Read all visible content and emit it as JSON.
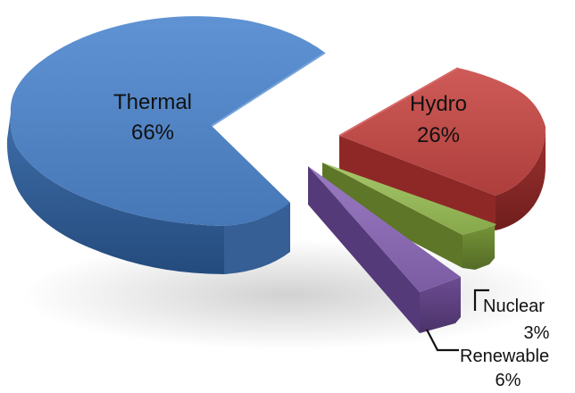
{
  "chart_data": {
    "type": "pie",
    "categories": [
      "Thermal",
      "Hydro",
      "Nuclear",
      "Renewable"
    ],
    "values": [
      66,
      26,
      3,
      6
    ],
    "labels": [
      "66%",
      "26%",
      "3%",
      "6%"
    ],
    "exploded": true,
    "style": "3d",
    "colors": {
      "Thermal": "#4f81bd",
      "Hydro": "#c0504d",
      "Nuclear": "#9bbb59",
      "Renewable": "#8064a2"
    }
  }
}
